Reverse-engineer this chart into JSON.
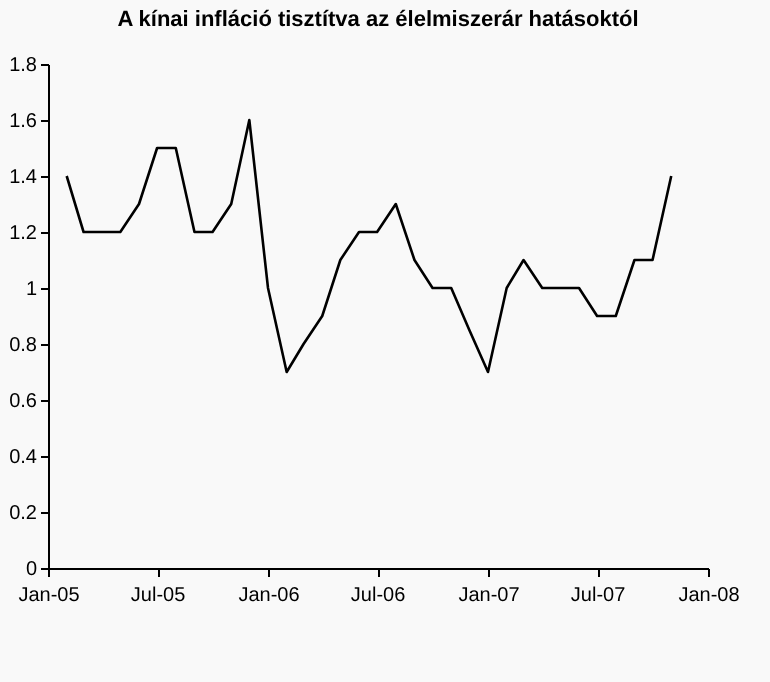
{
  "chart_data": {
    "type": "line",
    "title": "A kínai infláció tisztítva az élelmiszerár hatásoktól",
    "x": [
      "2005-02",
      "2005-03",
      "2005-04",
      "2005-05",
      "2005-06",
      "2005-07",
      "2005-08",
      "2005-09",
      "2005-10",
      "2005-11",
      "2005-12",
      "2006-01",
      "2006-02",
      "2006-03",
      "2006-04",
      "2006-05",
      "2006-06",
      "2006-07",
      "2006-08",
      "2006-09",
      "2006-10",
      "2006-11",
      "2006-12",
      "2007-01",
      "2007-02",
      "2007-03",
      "2007-04",
      "2007-05",
      "2007-06",
      "2007-07",
      "2007-08",
      "2007-09",
      "2007-10",
      "2007-11"
    ],
    "series": [
      {
        "color": "#000000",
        "values": [
          1.4,
          1.2,
          1.2,
          1.2,
          1.3,
          1.5,
          1.5,
          1.2,
          1.2,
          1.3,
          1.6,
          1.0,
          0.7,
          0.8,
          0.9,
          1.1,
          1.2,
          1.2,
          1.3,
          1.1,
          1.0,
          1.0,
          0.85,
          0.7,
          1.0,
          1.1,
          1.0,
          1.0,
          1.0,
          0.9,
          0.9,
          1.1,
          1.1,
          1.4
        ]
      }
    ],
    "xlim": [
      "2005-01",
      "2008-01"
    ],
    "xticks": [
      {
        "value": "2005-01",
        "label": "Jan-05"
      },
      {
        "value": "2005-07",
        "label": "Jul-05"
      },
      {
        "value": "2006-01",
        "label": "Jan-06"
      },
      {
        "value": "2006-07",
        "label": "Jul-06"
      },
      {
        "value": "2007-01",
        "label": "Jan-07"
      },
      {
        "value": "2007-07",
        "label": "Jul-07"
      },
      {
        "value": "2008-01",
        "label": "Jan-08"
      }
    ],
    "ylim": [
      0,
      1.8
    ],
    "yticks": [
      0,
      0.2,
      0.4,
      0.6,
      0.8,
      1,
      1.2,
      1.4,
      1.6,
      1.8
    ],
    "grid": false,
    "marker": "none",
    "line_style": "solid"
  }
}
